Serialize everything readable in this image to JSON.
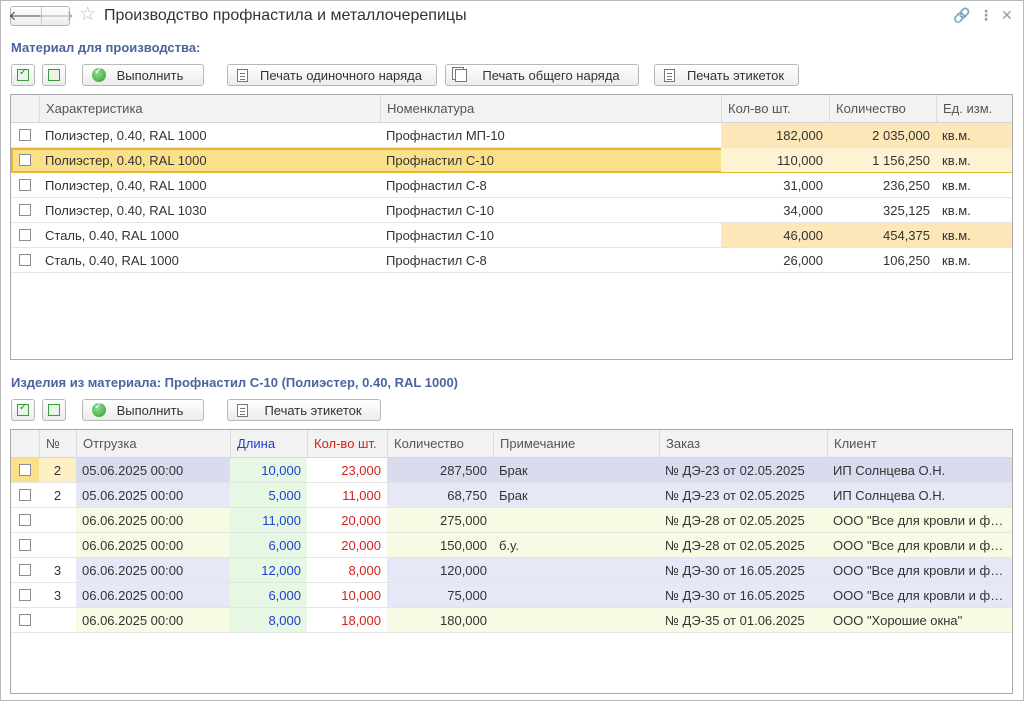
{
  "window": {
    "title": "Производство профнастила и металлочерепицы",
    "icons": [
      "back-arrow-icon",
      "forward-arrow-icon",
      "star-icon",
      "link-icon",
      "more-icon",
      "close-icon"
    ]
  },
  "materials": {
    "section_title": "Материал для производства:",
    "toolbar": {
      "execute_label": "Выполнить",
      "print_single_label": "Печать одиночного наряда",
      "print_general_label": "Печать общего наряда",
      "print_labels_label": "Печать этикеток"
    },
    "columns": {
      "char": "Характеристика",
      "nom": "Номенклатура",
      "qty_pcs": "Кол-во шт.",
      "qty": "Количество",
      "unit": "Ед. изм."
    },
    "rows": [
      {
        "char": "Полиэстер, 0.40, RAL 1000",
        "nom": "Профнастил МП-10",
        "qty_pcs": "182,000",
        "qty": "2 035,000",
        "unit": "кв.м."
      },
      {
        "char": "Полиэстер, 0.40, RAL 1000",
        "nom": "Профнастил С-10",
        "qty_pcs": "110,000",
        "qty": "1 156,250",
        "unit": "кв.м."
      },
      {
        "char": "Полиэстер, 0.40, RAL 1000",
        "nom": "Профнастил С-8",
        "qty_pcs": "31,000",
        "qty": "236,250",
        "unit": "кв.м."
      },
      {
        "char": "Полиэстер, 0.40, RAL 1030",
        "nom": "Профнастил С-10",
        "qty_pcs": "34,000",
        "qty": "325,125",
        "unit": "кв.м."
      },
      {
        "char": "Сталь, 0.40, RAL 1000",
        "nom": "Профнастил С-10",
        "qty_pcs": "46,000",
        "qty": "454,375",
        "unit": "кв.м."
      },
      {
        "char": "Сталь, 0.40, RAL 1000",
        "nom": "Профнастил С-8",
        "qty_pcs": "26,000",
        "qty": "106,250",
        "unit": "кв.м."
      }
    ]
  },
  "products": {
    "section_title": "Изделия из материала: Профнастил С-10 (Полиэстер, 0.40, RAL 1000)",
    "toolbar": {
      "execute_label": "Выполнить",
      "print_labels_label": "Печать этикеток"
    },
    "columns": {
      "num": "№",
      "ship": "Отгрузка",
      "len": "Длина",
      "pcs": "Кол-во шт.",
      "qty": "Количество",
      "note": "Примечание",
      "order": "Заказ",
      "client": "Клиент"
    },
    "rows": [
      {
        "num": "2",
        "ship": "05.06.2025 00:00",
        "len": "10,000",
        "pcs": "23,000",
        "qty": "287,500",
        "note": "Брак",
        "order": "№ ДЭ-23 от 02.05.2025",
        "client": "ИП Солнцева О.Н."
      },
      {
        "num": "2",
        "ship": "05.06.2025 00:00",
        "len": "5,000",
        "pcs": "11,000",
        "qty": "68,750",
        "note": "Брак",
        "order": "№ ДЭ-23 от 02.05.2025",
        "client": "ИП Солнцева О.Н."
      },
      {
        "num": "",
        "ship": "06.06.2025 00:00",
        "len": "11,000",
        "pcs": "20,000",
        "qty": "275,000",
        "note": "",
        "order": "№ ДЭ-28 от 02.05.2025",
        "client": "ООО \"Все для кровли и фасада\""
      },
      {
        "num": "",
        "ship": "06.06.2025 00:00",
        "len": "6,000",
        "pcs": "20,000",
        "qty": "150,000",
        "note": "б.у.",
        "order": "№ ДЭ-28 от 02.05.2025",
        "client": "ООО \"Все для кровли и фасада\""
      },
      {
        "num": "3",
        "ship": "06.06.2025 00:00",
        "len": "12,000",
        "pcs": "8,000",
        "qty": "120,000",
        "note": "",
        "order": "№ ДЭ-30 от 16.05.2025",
        "client": "ООО \"Все для кровли и фасада\""
      },
      {
        "num": "3",
        "ship": "06.06.2025 00:00",
        "len": "6,000",
        "pcs": "10,000",
        "qty": "75,000",
        "note": "",
        "order": "№ ДЭ-30 от 16.05.2025",
        "client": "ООО \"Все для кровли и фасада\""
      },
      {
        "num": "",
        "ship": "06.06.2025 00:00",
        "len": "8,000",
        "pcs": "18,000",
        "qty": "180,000",
        "note": "",
        "order": "№ ДЭ-35 от 01.06.2025",
        "client": "ООО \"Хорошие окна\""
      }
    ]
  },
  "colors": {
    "accent_title": "#4a64a0",
    "highlight_orange": "#fde7b8",
    "selected_row": "#fbe08c",
    "length_blue": "#1f3fd0",
    "pieces_red": "#d42020",
    "length_bg": "#e6f7e4",
    "yellow_row": "#f8fbe4",
    "blue_row": "#e6e8f8"
  }
}
